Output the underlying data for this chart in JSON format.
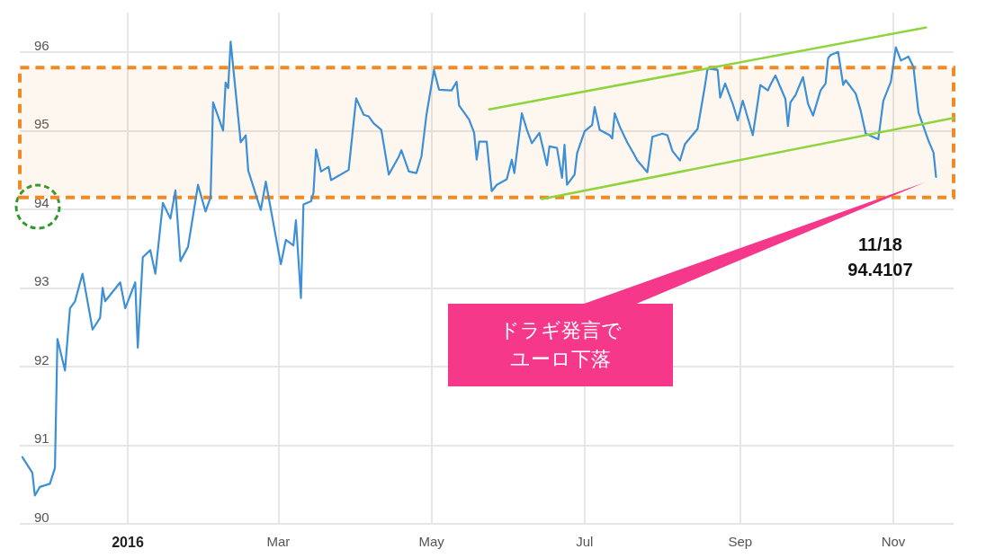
{
  "chart_data": {
    "type": "line",
    "xlim": [
      "2015-11-19",
      "2016-11-25"
    ],
    "xticks": [
      {
        "value": "2016-01-01",
        "label": "2016"
      },
      {
        "value": "2016-03-01",
        "label": "Mar"
      },
      {
        "value": "2016-05-01",
        "label": "May"
      },
      {
        "value": "2016-07-01",
        "label": "Jul"
      },
      {
        "value": "2016-09-01",
        "label": "Sep"
      },
      {
        "value": "2016-11-01",
        "label": "Nov"
      }
    ],
    "ylim": [
      90,
      96.5
    ],
    "yticks": [
      90,
      91,
      92,
      93,
      94,
      95,
      96
    ],
    "grid": true,
    "marker": "none",
    "line_style": "solid",
    "series": [
      {
        "color": "#3d8fd6",
        "x": [
          "2015-11-20",
          "2015-11-24",
          "2015-11-25",
          "2015-11-27",
          "2015-12-01",
          "2015-12-03",
          "2015-12-04",
          "2015-12-07",
          "2015-12-09",
          "2015-12-11",
          "2015-12-14",
          "2015-12-18",
          "2015-12-21",
          "2015-12-22",
          "2015-12-23",
          "2015-12-29",
          "2015-12-31",
          "2016-01-04",
          "2016-01-05",
          "2016-01-07",
          "2016-01-10",
          "2016-01-12",
          "2016-01-15",
          "2016-01-18",
          "2016-01-20",
          "2016-01-22",
          "2016-01-25",
          "2016-01-29",
          "2016-02-01",
          "2016-02-03",
          "2016-02-04",
          "2016-02-08",
          "2016-02-09",
          "2016-02-10",
          "2016-02-11",
          "2016-02-15",
          "2016-02-17",
          "2016-02-18",
          "2016-02-23",
          "2016-02-25",
          "2016-03-02",
          "2016-03-04",
          "2016-03-07",
          "2016-03-08",
          "2016-03-10",
          "2016-03-11",
          "2016-03-14",
          "2016-03-15",
          "2016-03-16",
          "2016-03-18",
          "2016-03-21",
          "2016-03-22",
          "2016-03-29",
          "2016-04-01",
          "2016-04-04",
          "2016-04-06",
          "2016-04-08",
          "2016-04-11",
          "2016-04-14",
          "2016-04-18",
          "2016-04-19",
          "2016-04-22",
          "2016-04-25",
          "2016-04-27",
          "2016-04-29",
          "2016-05-02",
          "2016-05-04",
          "2016-05-09",
          "2016-05-11",
          "2016-05-12",
          "2016-05-16",
          "2016-05-18",
          "2016-05-19",
          "2016-05-20",
          "2016-05-23",
          "2016-05-25",
          "2016-05-27",
          "2016-05-31",
          "2016-06-02",
          "2016-06-03",
          "2016-06-06",
          "2016-06-08",
          "2016-06-10",
          "2016-06-13",
          "2016-06-16",
          "2016-06-17",
          "2016-06-20",
          "2016-06-22",
          "2016-06-23",
          "2016-06-24",
          "2016-06-27",
          "2016-06-28",
          "2016-07-01",
          "2016-07-04",
          "2016-07-05",
          "2016-07-07",
          "2016-07-11",
          "2016-07-12",
          "2016-07-13",
          "2016-07-15",
          "2016-07-18",
          "2016-07-21",
          "2016-07-22",
          "2016-07-26",
          "2016-07-28",
          "2016-08-01",
          "2016-08-03",
          "2016-08-05",
          "2016-08-08",
          "2016-08-10",
          "2016-08-15",
          "2016-08-18",
          "2016-08-19",
          "2016-08-23",
          "2016-08-24",
          "2016-08-26",
          "2016-08-29",
          "2016-08-31",
          "2016-09-02",
          "2016-09-06",
          "2016-09-09",
          "2016-09-12",
          "2016-09-13",
          "2016-09-15",
          "2016-09-19",
          "2016-09-20",
          "2016-09-21",
          "2016-09-23",
          "2016-09-26",
          "2016-09-28",
          "2016-09-30",
          "2016-10-03",
          "2016-10-05",
          "2016-10-06",
          "2016-10-07",
          "2016-10-10",
          "2016-10-12",
          "2016-10-13",
          "2016-10-17",
          "2016-10-19",
          "2016-10-21",
          "2016-10-26",
          "2016-10-28",
          "2016-10-31",
          "2016-11-02",
          "2016-11-04",
          "2016-11-07",
          "2016-11-09",
          "2016-11-11",
          "2016-11-15",
          "2016-11-17",
          "2016-11-18"
        ],
        "values": [
          90.85,
          90.65,
          90.36,
          90.47,
          90.51,
          90.71,
          92.35,
          91.95,
          92.74,
          92.83,
          93.18,
          92.47,
          92.62,
          93.0,
          92.83,
          93.07,
          92.74,
          93.07,
          92.24,
          93.39,
          93.48,
          93.18,
          94.08,
          93.88,
          94.24,
          93.34,
          93.52,
          94.31,
          93.97,
          94.15,
          95.36,
          95.0,
          95.61,
          95.54,
          96.13,
          94.85,
          94.94,
          94.49,
          93.99,
          94.35,
          93.3,
          93.61,
          93.54,
          93.86,
          92.87,
          94.06,
          94.1,
          94.21,
          94.76,
          94.48,
          94.54,
          94.37,
          94.5,
          95.41,
          95.2,
          95.18,
          95.09,
          95.01,
          94.44,
          94.67,
          94.75,
          94.48,
          94.46,
          94.67,
          95.2,
          95.77,
          95.52,
          95.51,
          95.62,
          95.32,
          95.14,
          94.97,
          94.63,
          94.86,
          94.86,
          94.23,
          94.31,
          94.38,
          94.63,
          94.46,
          95.22,
          95.01,
          94.84,
          94.97,
          94.56,
          94.8,
          94.78,
          94.4,
          94.82,
          94.31,
          94.44,
          94.71,
          94.99,
          95.07,
          95.3,
          95.01,
          94.94,
          94.9,
          95.22,
          95.05,
          94.85,
          94.68,
          94.62,
          94.47,
          94.92,
          94.96,
          94.94,
          94.74,
          94.62,
          94.83,
          95.02,
          95.58,
          95.79,
          95.77,
          95.42,
          95.6,
          95.34,
          95.13,
          95.38,
          94.94,
          95.58,
          95.51,
          95.58,
          95.7,
          95.4,
          95.06,
          95.36,
          95.45,
          95.68,
          95.34,
          95.19,
          95.51,
          95.6,
          95.92,
          95.96,
          96.0,
          95.58,
          95.64,
          95.47,
          95.25,
          94.96,
          94.89,
          95.38,
          95.62,
          96.06,
          95.89,
          95.94,
          95.81,
          95.23,
          94.87,
          94.72,
          94.41
        ]
      },
      {
        "type": "line",
        "color": "#8ed43c",
        "x": [
          "2016-05-24",
          "2016-11-14"
        ],
        "values": [
          95.27,
          96.31
        ]
      },
      {
        "type": "line",
        "color": "#8ed43c",
        "x": [
          "2016-06-14",
          "2016-11-25"
        ],
        "values": [
          94.13,
          95.16
        ]
      }
    ],
    "bands": [
      {
        "axis": "y",
        "from": 94.15,
        "to": 95.8,
        "color": "#f08a24"
      }
    ],
    "annotations": [
      "11/18\n94.4107",
      "ドラギ発言でユーロ下落"
    ]
  }
}
